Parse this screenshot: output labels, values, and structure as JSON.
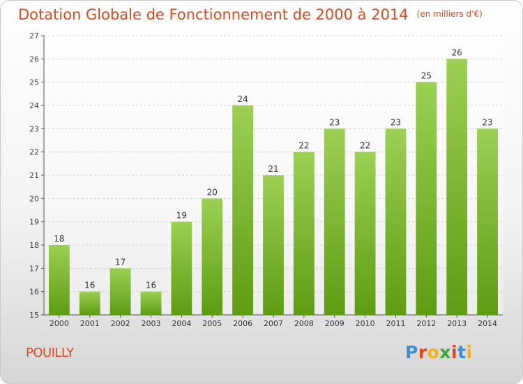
{
  "header": {
    "title": "Dotation Globale de Fonctionnement de 2000 à 2014",
    "unit": "(en milliers d'€)"
  },
  "footer": {
    "town": "POUILLY",
    "logo_text": "Proxiti",
    "logo_colors": [
      "#3a8fd6",
      "#e8451e",
      "#f2b01e",
      "#3aa935",
      "#e8451e",
      "#3a8fd6",
      "#f2b01e"
    ]
  },
  "colors": {
    "accent": "#d94a1c",
    "bar_top": "#9cd053",
    "bar_bottom": "#5e9c12",
    "grid": "#d0d0d0"
  },
  "chart_data": {
    "type": "bar",
    "categories": [
      "2000",
      "2001",
      "2002",
      "2003",
      "2004",
      "2005",
      "2006",
      "2007",
      "2008",
      "2009",
      "2010",
      "2011",
      "2012",
      "2013",
      "2014"
    ],
    "values": [
      18,
      16,
      17,
      16,
      19,
      20,
      24,
      21,
      22,
      23,
      22,
      23,
      25,
      26,
      23
    ],
    "ylim": [
      15,
      27
    ],
    "yticks": [
      15,
      16,
      17,
      18,
      19,
      20,
      21,
      22,
      23,
      24,
      25,
      26,
      27
    ],
    "grid": true,
    "xlabel": "",
    "ylabel": ""
  }
}
